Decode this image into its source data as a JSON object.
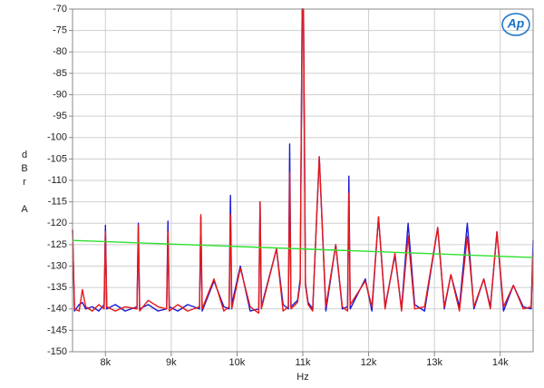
{
  "logo": "Ap",
  "chart_data": {
    "type": "line",
    "x_label": "Hz",
    "y_label": "dBr A",
    "xlim": [
      7500,
      14500
    ],
    "ylim": [
      -150,
      -70
    ],
    "xticks": [
      {
        "value": 8000,
        "label": "8k"
      },
      {
        "value": 9000,
        "label": "9k"
      },
      {
        "value": 10000,
        "label": "10k"
      },
      {
        "value": 11000,
        "label": "11k"
      },
      {
        "value": 12000,
        "label": "12k"
      },
      {
        "value": 13000,
        "label": "13k"
      },
      {
        "value": 14000,
        "label": "14k"
      }
    ],
    "yticks": [
      -70,
      -75,
      -80,
      -85,
      -90,
      -95,
      -100,
      -105,
      -110,
      -115,
      -120,
      -125,
      -130,
      -135,
      -140,
      -145,
      -150
    ],
    "grid": true,
    "x": [
      7500,
      7530,
      7600,
      7650,
      7700,
      7800,
      7900,
      7980,
      8000,
      8020,
      8150,
      8300,
      8480,
      8500,
      8520,
      8650,
      8800,
      8930,
      8950,
      8970,
      9100,
      9250,
      9430,
      9450,
      9470,
      9650,
      9800,
      9880,
      9900,
      9920,
      10050,
      10200,
      10330,
      10350,
      10370,
      10600,
      10700,
      10780,
      10800,
      10820,
      10920,
      10960,
      10990,
      11010,
      11040,
      11080,
      11150,
      11250,
      11350,
      11500,
      11600,
      11680,
      11700,
      11720,
      11950,
      12050,
      12150,
      12250,
      12400,
      12500,
      12600,
      12700,
      12850,
      13050,
      13150,
      13250,
      13380,
      13500,
      13600,
      13750,
      13850,
      13950,
      14050,
      14200,
      14350,
      14470,
      14500
    ],
    "series": [
      {
        "color": "#1a1ad6",
        "values": [
          -121.5,
          -140.5,
          -139,
          -138.5,
          -140,
          -139.5,
          -140.5,
          -139,
          -120.5,
          -140,
          -139,
          -140.5,
          -139.5,
          -120,
          -140,
          -139,
          -140.5,
          -140,
          -119.5,
          -139.5,
          -140.5,
          -139,
          -140,
          -118.5,
          -140.5,
          -133.5,
          -139.5,
          -140,
          -113.5,
          -139,
          -130,
          -140.5,
          -140,
          -115,
          -139.5,
          -126,
          -139,
          -140,
          -101.5,
          -139.5,
          -138,
          -133,
          -70,
          -70,
          -134,
          -138.5,
          -140,
          -104.5,
          -140.5,
          -125,
          -140,
          -139.5,
          -109,
          -140,
          -133,
          -140.5,
          -118.5,
          -139.5,
          -127.5,
          -140,
          -120,
          -139,
          -140.5,
          -121,
          -140,
          -132,
          -139.5,
          -120,
          -140,
          -133,
          -139.5,
          -122,
          -140.5,
          -134.5,
          -139.5,
          -140,
          -124
        ]
      },
      {
        "color": "#e81818",
        "values": [
          -121.5,
          -140,
          -140.5,
          -135.5,
          -139.5,
          -140.5,
          -139,
          -140,
          -122,
          -139.5,
          -140.5,
          -139.5,
          -140,
          -120.5,
          -140.5,
          -138,
          -139.5,
          -140,
          -122,
          -140.5,
          -139,
          -140.5,
          -139.5,
          -118,
          -140,
          -133,
          -140.5,
          -139.5,
          -118,
          -140,
          -130.5,
          -139.5,
          -141,
          -115,
          -140,
          -126,
          -140.5,
          -139.5,
          -108,
          -140,
          -138.5,
          -134,
          -70,
          -70,
          -134.5,
          -139,
          -140.5,
          -104.5,
          -139.5,
          -125,
          -139.5,
          -140.5,
          -113,
          -139,
          -133.5,
          -139.5,
          -118.5,
          -140,
          -127,
          -140.5,
          -123,
          -140,
          -139.5,
          -121,
          -139.5,
          -132,
          -140.5,
          -123,
          -139.5,
          -133,
          -140,
          -122,
          -139.5,
          -134.5,
          -140,
          -139.5,
          -127
        ]
      },
      {
        "color": "#2ee02e",
        "x": [
          7500,
          14500
        ],
        "values": [
          -124,
          -128
        ]
      }
    ]
  }
}
